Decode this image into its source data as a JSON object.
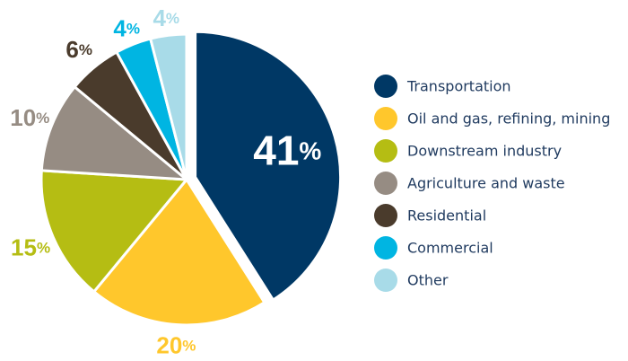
{
  "chart_data": {
    "type": "pie",
    "title": "",
    "slices": [
      {
        "label": "Transportation",
        "value": 41,
        "value_label": "41",
        "color": "#003865"
      },
      {
        "label": "Oil and gas, refining, mining",
        "value": 20,
        "value_label": "20",
        "color": "#ffc72c"
      },
      {
        "label": "Downstream industry",
        "value": 15,
        "value_label": "15",
        "color": "#b5bd13"
      },
      {
        "label": "Agriculture and waste",
        "value": 10,
        "value_label": "10",
        "color": "#968c83"
      },
      {
        "label": "Residential",
        "value": 6,
        "value_label": "6",
        "color": "#4a3b2c"
      },
      {
        "label": "Commercial",
        "value": 4,
        "value_label": "4",
        "color": "#00b5e2"
      },
      {
        "label": "Other",
        "value": 4,
        "value_label": "4",
        "color": "#a8dbe8"
      }
    ],
    "percent_symbol": "%",
    "legend_position": "right",
    "exploded_slice": "Transportation"
  }
}
